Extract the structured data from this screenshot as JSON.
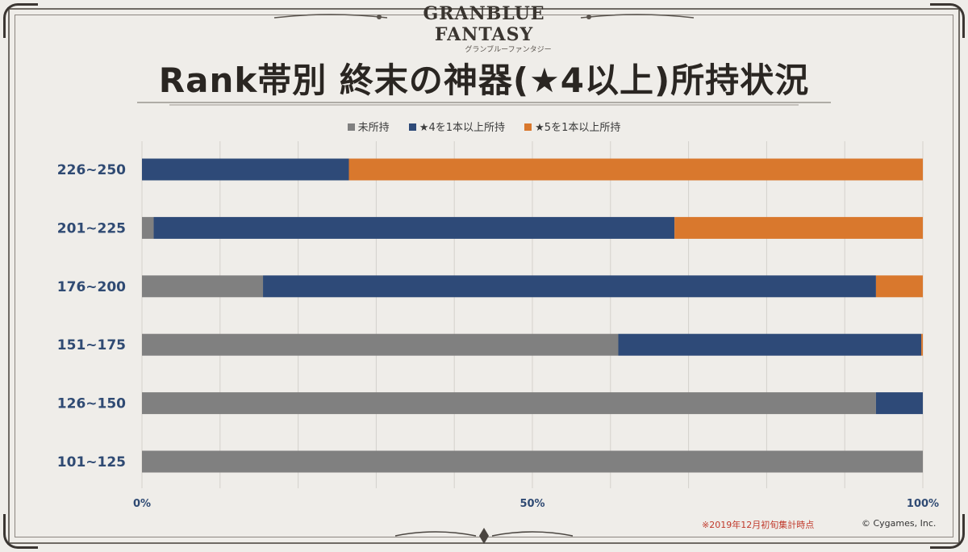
{
  "header": {
    "logo_text": "GRANBLUE FANTASY",
    "logo_subtext": "グランブルーファンタジー",
    "title": "Rank帯別 終末の神器(★4以上)所持状況"
  },
  "footer": {
    "note": "※2019年12月初旬集計時点",
    "copyright": "© Cygames, Inc."
  },
  "colors": {
    "not_owned": "#808080",
    "star4": "#2e4a78",
    "star5": "#d9782d",
    "grid": "#d4d1cc",
    "axis_text": "#2f4a73"
  },
  "chart_data": {
    "type": "bar",
    "orientation": "horizontal",
    "stacked": true,
    "normalized_percent": true,
    "categories": [
      "226~250",
      "201~225",
      "176~200",
      "151~175",
      "126~150",
      "101~125"
    ],
    "series": [
      {
        "name": "未所持",
        "color": "#808080",
        "values": [
          0,
          1.5,
          15.5,
          61,
          94,
          100
        ]
      },
      {
        "name": "★4を1本以上所持",
        "color": "#2e4a78",
        "values": [
          26.5,
          66.7,
          78.5,
          38.8,
          6,
          0
        ]
      },
      {
        "name": "★5を1本以上所持",
        "color": "#d9782d",
        "values": [
          73.5,
          31.8,
          6,
          0.2,
          0,
          0
        ]
      }
    ],
    "xlim": [
      0,
      100
    ],
    "x_ticks": [
      "0%",
      "50%",
      "100%"
    ],
    "grid": true,
    "legend_position": "top-center"
  }
}
